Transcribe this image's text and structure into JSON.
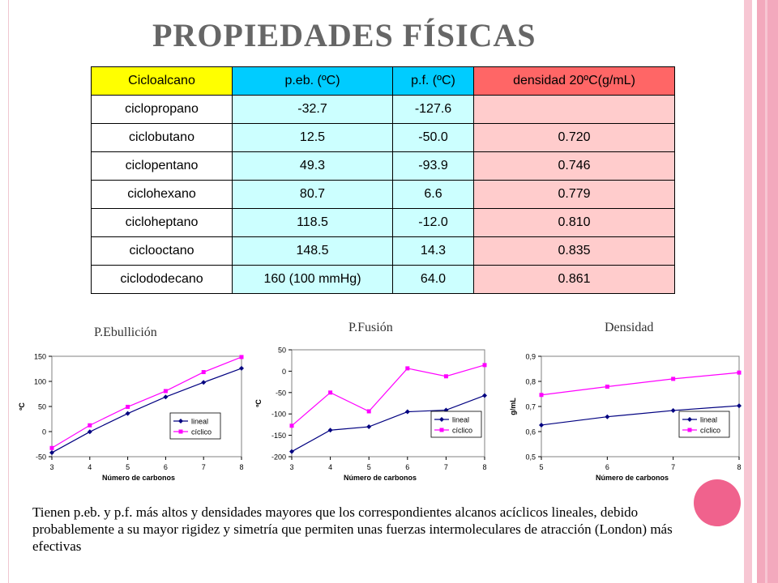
{
  "title": "PROPIEDADES FÍSICAS",
  "table": {
    "headers": [
      "Cicloalcano",
      "p.eb. (ºC)",
      "p.f. (ºC)",
      "densidad 20ºC(g/mL)"
    ],
    "rows": [
      [
        "ciclopropano",
        "-32.7",
        "-127.6",
        ""
      ],
      [
        "ciclobutano",
        "12.5",
        "-50.0",
        "0.720"
      ],
      [
        "ciclopentano",
        "49.3",
        "-93.9",
        "0.746"
      ],
      [
        "ciclohexano",
        "80.7",
        "6.6",
        "0.779"
      ],
      [
        "cicloheptano",
        "118.5",
        "-12.0",
        "0.810"
      ],
      [
        "ciclooctano",
        "148.5",
        "14.3",
        "0.835"
      ],
      [
        "ciclododecano",
        "160 (100 mmHg)",
        "64.0",
        "0.861"
      ]
    ]
  },
  "chart_data": [
    {
      "type": "line",
      "title": "P.Ebullición",
      "xlabel": "Número de carbonos",
      "ylabel": "ºC",
      "x": [
        3,
        4,
        5,
        6,
        7,
        8
      ],
      "xticks": [
        "3",
        "4",
        "5",
        "6",
        "7",
        "8"
      ],
      "ylim": [
        -50,
        150
      ],
      "yticks": [
        "-50",
        "0",
        "50",
        "100",
        "150"
      ],
      "ytick_values": [
        -50,
        0,
        50,
        100,
        150
      ],
      "series": [
        {
          "name": "lineal",
          "values": [
            -42,
            -0.5,
            36,
            69,
            98,
            126
          ],
          "color": "#000080",
          "marker": "diamond"
        },
        {
          "name": "cíclico",
          "values": [
            -32.7,
            12.5,
            49.3,
            80.7,
            118.5,
            148.5
          ],
          "color": "#ff00ff",
          "marker": "square"
        }
      ],
      "legend": "bottom-right",
      "grid": false
    },
    {
      "type": "line",
      "title": "P.Fusión",
      "xlabel": "Número de carbonos",
      "ylabel": "ºC",
      "x": [
        3,
        4,
        5,
        6,
        7,
        8
      ],
      "xticks": [
        "3",
        "4",
        "5",
        "6",
        "7",
        "8"
      ],
      "ylim": [
        -200,
        50
      ],
      "yticks": [
        "-200",
        "-150",
        "-100",
        "-50",
        "0",
        "50"
      ],
      "ytick_values": [
        -200,
        -150,
        -100,
        -50,
        0,
        50
      ],
      "series": [
        {
          "name": "lineal",
          "values": [
            -188,
            -138,
            -130,
            -95,
            -91,
            -57
          ],
          "color": "#000080",
          "marker": "diamond"
        },
        {
          "name": "cíclico",
          "values": [
            -127.6,
            -50.0,
            -93.9,
            6.6,
            -12.0,
            14.3
          ],
          "color": "#ff00ff",
          "marker": "square"
        }
      ],
      "legend": "bottom-right",
      "grid": false
    },
    {
      "type": "line",
      "title": "Densidad",
      "xlabel": "Número de carbonos",
      "ylabel": "g/mL",
      "x": [
        5,
        6,
        7,
        8
      ],
      "xticks": [
        "5",
        "6",
        "7",
        "8"
      ],
      "ylim": [
        0.5,
        0.9
      ],
      "yticks": [
        "0,5",
        "0,6",
        "0,7",
        "0,8",
        "0,9"
      ],
      "ytick_values": [
        0.5,
        0.6,
        0.7,
        0.8,
        0.9
      ],
      "series": [
        {
          "name": "lineal",
          "values": [
            0.626,
            0.659,
            0.684,
            0.703
          ],
          "color": "#000080",
          "marker": "diamond"
        },
        {
          "name": "cíclico",
          "values": [
            0.746,
            0.779,
            0.81,
            0.835
          ],
          "color": "#ff00ff",
          "marker": "square"
        }
      ],
      "legend": "bottom-right",
      "grid": false
    }
  ],
  "footer": "Tienen p.eb. y p.f. más altos y densidades mayores que los correspondientes alcanos acíclicos lineales, debido probablemente a su mayor rigidez y simetría que permiten unas fuerzas intermoleculares de atracción (London) más efectivas",
  "colors": {
    "decor_pink": "#f5b8c8",
    "decor_pink_dark": "#f0a0b6",
    "circle": "#f0628d"
  }
}
